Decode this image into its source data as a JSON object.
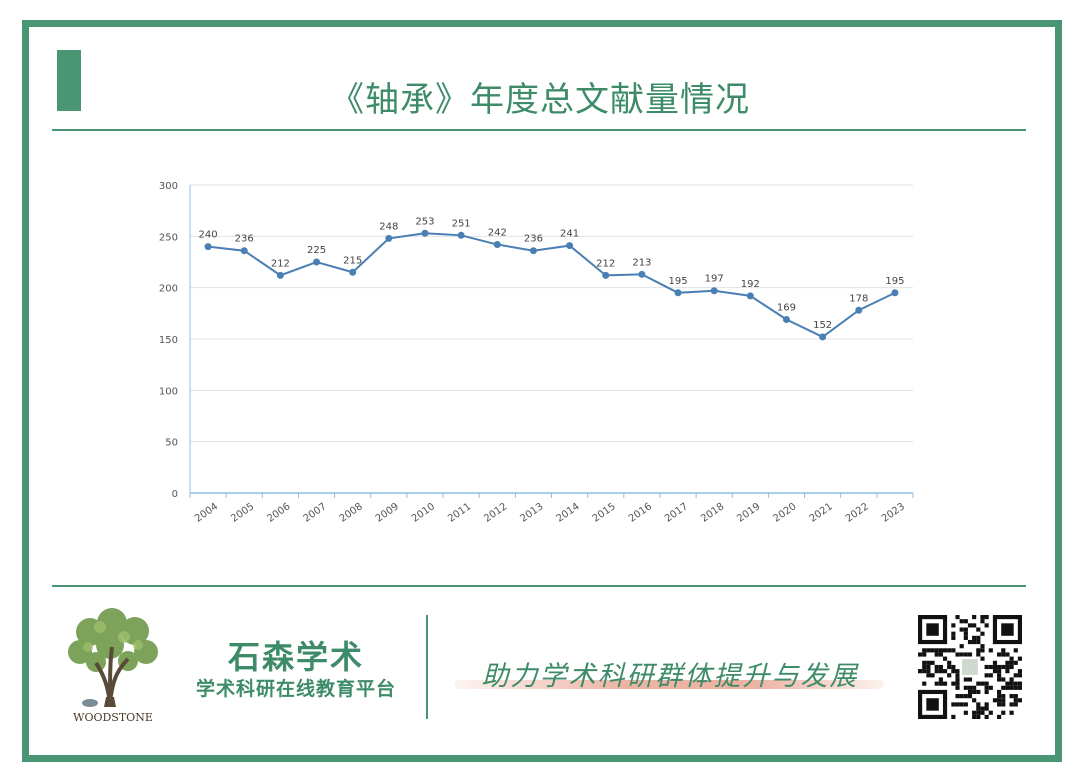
{
  "header": {
    "title": "《轴承》年度总文献量情况"
  },
  "footer": {
    "logo_text": "WOODSTONE",
    "brand_name": "石森学术",
    "brand_sub": "学术科研在线教育平台",
    "slogan": "助力学术科研群体提升与发展"
  },
  "colors": {
    "brand_green": "#4a9574",
    "line": "#4a7fb3",
    "grid": "#dde3ea",
    "axis": "#8fbfe0"
  },
  "chart_data": {
    "type": "line",
    "title": "",
    "xlabel": "",
    "ylabel": "",
    "categories": [
      "2004",
      "2005",
      "2006",
      "2007",
      "2008",
      "2009",
      "2010",
      "2011",
      "2012",
      "2013",
      "2014",
      "2015",
      "2016",
      "2017",
      "2018",
      "2019",
      "2020",
      "2021",
      "2022",
      "2023"
    ],
    "values": [
      240,
      236,
      212,
      225,
      215,
      248,
      253,
      251,
      242,
      236,
      241,
      212,
      213,
      195,
      197,
      192,
      169,
      152,
      178,
      195
    ],
    "ylim": [
      0,
      300
    ],
    "yticks": [
      0,
      50,
      100,
      150,
      200,
      250,
      300
    ],
    "grid": true,
    "data_labels": true
  }
}
